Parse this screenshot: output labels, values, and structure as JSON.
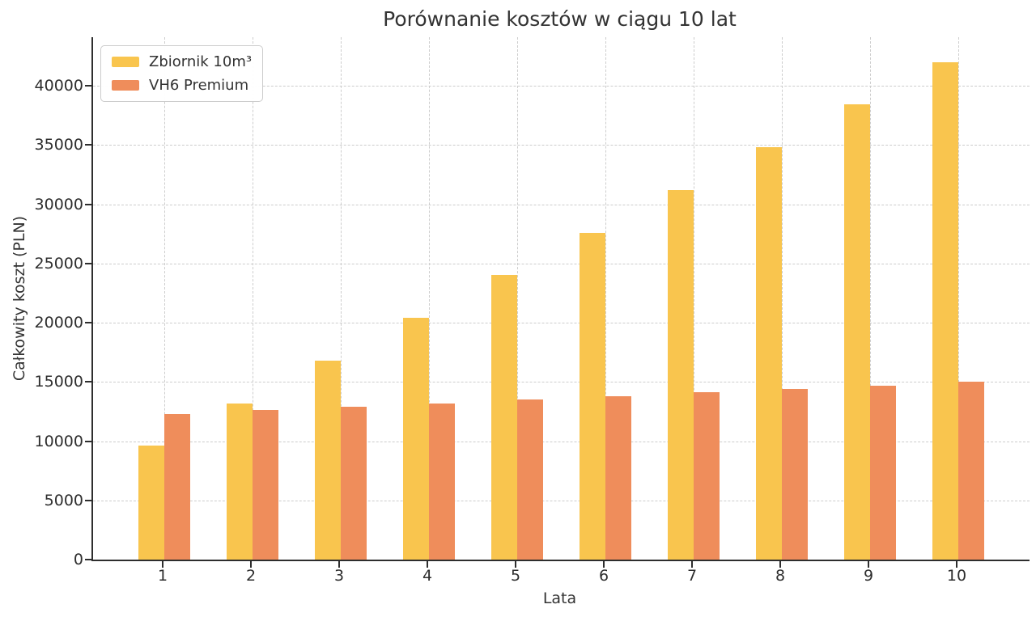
{
  "figure": {
    "background_color": "#ffffff",
    "text_color": "#333333",
    "axis_color": "#2e2e2e",
    "gridline_color": "#cdcdcd"
  },
  "chart_data": {
    "type": "bar",
    "title": "Porównanie kosztów w ciągu 10 lat",
    "xlabel": "Lata",
    "ylabel": "Całkowity koszt (PLN)",
    "categories": [
      "1",
      "2",
      "3",
      "4",
      "5",
      "6",
      "7",
      "8",
      "9",
      "10"
    ],
    "series": [
      {
        "name": "Zbiornik 10m³",
        "color": "#F9C54E",
        "values": [
          9600,
          13200,
          16800,
          20400,
          24000,
          27600,
          31200,
          34800,
          38400,
          42000
        ]
      },
      {
        "name": "VH6 Premium",
        "color": "#EF8D5B",
        "values": [
          12300,
          12600,
          12900,
          13200,
          13500,
          13800,
          14100,
          14400,
          14700,
          15000
        ]
      }
    ],
    "ylim": [
      0,
      44100
    ],
    "yticks": [
      0,
      5000,
      10000,
      15000,
      20000,
      25000,
      30000,
      35000,
      40000
    ],
    "grid": "both-dashed",
    "legend_position": "upper-left"
  }
}
